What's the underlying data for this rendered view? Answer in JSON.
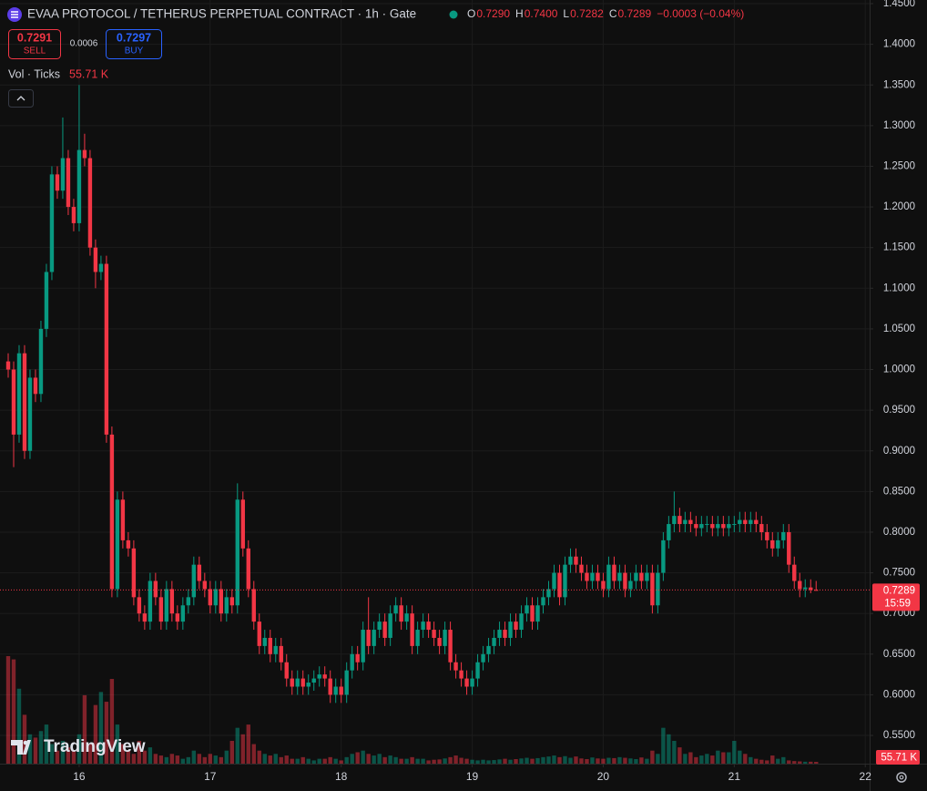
{
  "chart_data": {
    "type": "candlestick",
    "title": "EVAA PROTOCOL / TETHERUS PERPETUAL CONTRACT · 1h · Gate",
    "ohlc_legend": [
      {
        "key": "O",
        "value": "0.7290"
      },
      {
        "key": "H",
        "value": "0.7400"
      },
      {
        "key": "L",
        "value": "0.7282"
      },
      {
        "key": "C",
        "value": "0.7289"
      }
    ],
    "change": "−0.0003 (−0.04%)",
    "sell": {
      "price": "0.7291",
      "label": "SELL"
    },
    "spread": "0.0006",
    "buy": {
      "price": "0.7297",
      "label": "BUY"
    },
    "volume_legend": {
      "name": "Vol · Ticks",
      "value": "55.71 K"
    },
    "countdown": "15:59",
    "volume_tag": "55.71 K",
    "logo": "TradingView",
    "up_color": "#089981",
    "down_color": "#f23645",
    "grid": true,
    "open": [
      1.01,
      1.0,
      0.92,
      1.02,
      0.9,
      0.99,
      0.97,
      1.05,
      1.12,
      1.24,
      1.22,
      1.26,
      1.2,
      1.18,
      1.27,
      1.26,
      1.15,
      1.12,
      1.13,
      0.92,
      0.73,
      0.84,
      0.79,
      0.78,
      0.72,
      0.7,
      0.69,
      0.74,
      0.72,
      0.69,
      0.73,
      0.7,
      0.69,
      0.71,
      0.72,
      0.76,
      0.74,
      0.73,
      0.71,
      0.73,
      0.7,
      0.72,
      0.71,
      0.84,
      0.78,
      0.73,
      0.69,
      0.66,
      0.67,
      0.65,
      0.66,
      0.64,
      0.62,
      0.61,
      0.62,
      0.61,
      0.615,
      0.62,
      0.625,
      0.62,
      0.6,
      0.61,
      0.6,
      0.63,
      0.65,
      0.64,
      0.68,
      0.66,
      0.68,
      0.69,
      0.67,
      0.7,
      0.71,
      0.69,
      0.7,
      0.66,
      0.68,
      0.69,
      0.68,
      0.67,
      0.66,
      0.68,
      0.64,
      0.63,
      0.62,
      0.61,
      0.62,
      0.64,
      0.65,
      0.66,
      0.67,
      0.68,
      0.67,
      0.69,
      0.68,
      0.7,
      0.71,
      0.69,
      0.71,
      0.72,
      0.73,
      0.75,
      0.72,
      0.76,
      0.77,
      0.76,
      0.75,
      0.74,
      0.75,
      0.74,
      0.73,
      0.76,
      0.74,
      0.75,
      0.73,
      0.74,
      0.75,
      0.74,
      0.75,
      0.71,
      0.75,
      0.79,
      0.81,
      0.82,
      0.81,
      0.815,
      0.81,
      0.805,
      0.81,
      0.81,
      0.805,
      0.81,
      0.805,
      0.81,
      0.81,
      0.815,
      0.81,
      0.815,
      0.81,
      0.8,
      0.79,
      0.78,
      0.79,
      0.8,
      0.76,
      0.74,
      0.73,
      0.732,
      0.729
    ],
    "high": [
      1.02,
      1.01,
      1.03,
      1.03,
      1.0,
      1.0,
      1.06,
      1.13,
      1.25,
      1.25,
      1.31,
      1.27,
      1.21,
      1.35,
      1.29,
      1.27,
      1.16,
      1.14,
      1.14,
      0.93,
      0.85,
      0.85,
      0.8,
      0.79,
      0.73,
      0.71,
      0.75,
      0.75,
      0.73,
      0.74,
      0.74,
      0.71,
      0.72,
      0.73,
      0.77,
      0.77,
      0.75,
      0.74,
      0.74,
      0.74,
      0.73,
      0.73,
      0.86,
      0.85,
      0.79,
      0.74,
      0.7,
      0.68,
      0.68,
      0.67,
      0.67,
      0.65,
      0.63,
      0.63,
      0.63,
      0.625,
      0.63,
      0.635,
      0.635,
      0.63,
      0.62,
      0.62,
      0.64,
      0.66,
      0.66,
      0.69,
      0.72,
      0.69,
      0.7,
      0.7,
      0.71,
      0.72,
      0.72,
      0.71,
      0.71,
      0.69,
      0.7,
      0.7,
      0.69,
      0.68,
      0.69,
      0.69,
      0.65,
      0.64,
      0.63,
      0.63,
      0.65,
      0.66,
      0.67,
      0.68,
      0.69,
      0.69,
      0.7,
      0.7,
      0.71,
      0.72,
      0.72,
      0.72,
      0.73,
      0.74,
      0.76,
      0.76,
      0.77,
      0.78,
      0.78,
      0.77,
      0.76,
      0.76,
      0.76,
      0.75,
      0.77,
      0.77,
      0.76,
      0.76,
      0.75,
      0.76,
      0.76,
      0.76,
      0.76,
      0.76,
      0.8,
      0.82,
      0.85,
      0.83,
      0.825,
      0.825,
      0.82,
      0.82,
      0.82,
      0.82,
      0.82,
      0.82,
      0.82,
      0.82,
      0.825,
      0.825,
      0.825,
      0.825,
      0.82,
      0.81,
      0.8,
      0.8,
      0.81,
      0.81,
      0.77,
      0.75,
      0.742,
      0.742,
      0.74
    ],
    "low": [
      0.99,
      0.88,
      0.91,
      0.89,
      0.89,
      0.96,
      0.96,
      1.04,
      1.11,
      1.21,
      1.21,
      1.19,
      1.17,
      1.17,
      1.25,
      1.14,
      1.1,
      1.11,
      0.91,
      0.72,
      0.72,
      0.78,
      0.77,
      0.71,
      0.69,
      0.68,
      0.68,
      0.71,
      0.68,
      0.68,
      0.69,
      0.68,
      0.68,
      0.7,
      0.71,
      0.73,
      0.72,
      0.7,
      0.7,
      0.69,
      0.69,
      0.7,
      0.7,
      0.77,
      0.72,
      0.68,
      0.65,
      0.65,
      0.64,
      0.64,
      0.63,
      0.61,
      0.6,
      0.6,
      0.6,
      0.6,
      0.605,
      0.61,
      0.61,
      0.59,
      0.59,
      0.59,
      0.59,
      0.62,
      0.63,
      0.63,
      0.65,
      0.65,
      0.67,
      0.66,
      0.66,
      0.69,
      0.68,
      0.68,
      0.65,
      0.65,
      0.67,
      0.67,
      0.66,
      0.65,
      0.65,
      0.63,
      0.62,
      0.61,
      0.6,
      0.6,
      0.61,
      0.63,
      0.64,
      0.65,
      0.66,
      0.66,
      0.66,
      0.67,
      0.67,
      0.69,
      0.68,
      0.68,
      0.7,
      0.71,
      0.72,
      0.71,
      0.71,
      0.75,
      0.75,
      0.74,
      0.73,
      0.73,
      0.73,
      0.72,
      0.72,
      0.73,
      0.73,
      0.72,
      0.72,
      0.73,
      0.73,
      0.73,
      0.7,
      0.7,
      0.74,
      0.78,
      0.8,
      0.8,
      0.8,
      0.8,
      0.795,
      0.795,
      0.8,
      0.795,
      0.795,
      0.795,
      0.795,
      0.8,
      0.8,
      0.8,
      0.8,
      0.8,
      0.79,
      0.78,
      0.77,
      0.77,
      0.78,
      0.75,
      0.73,
      0.72,
      0.72,
      0.725,
      0.7282
    ],
    "close": [
      1.0,
      0.92,
      1.02,
      0.9,
      0.99,
      0.97,
      1.05,
      1.12,
      1.24,
      1.22,
      1.26,
      1.2,
      1.18,
      1.27,
      1.26,
      1.15,
      1.12,
      1.13,
      0.92,
      0.73,
      0.84,
      0.79,
      0.78,
      0.72,
      0.7,
      0.69,
      0.74,
      0.72,
      0.69,
      0.73,
      0.7,
      0.69,
      0.71,
      0.72,
      0.76,
      0.74,
      0.73,
      0.71,
      0.73,
      0.7,
      0.72,
      0.71,
      0.84,
      0.78,
      0.73,
      0.69,
      0.66,
      0.67,
      0.65,
      0.66,
      0.64,
      0.62,
      0.61,
      0.62,
      0.61,
      0.615,
      0.62,
      0.625,
      0.62,
      0.6,
      0.61,
      0.6,
      0.63,
      0.65,
      0.64,
      0.68,
      0.66,
      0.68,
      0.69,
      0.67,
      0.7,
      0.71,
      0.69,
      0.7,
      0.66,
      0.68,
      0.69,
      0.68,
      0.67,
      0.66,
      0.68,
      0.64,
      0.63,
      0.62,
      0.61,
      0.62,
      0.64,
      0.65,
      0.66,
      0.67,
      0.68,
      0.67,
      0.69,
      0.68,
      0.7,
      0.71,
      0.69,
      0.71,
      0.72,
      0.73,
      0.75,
      0.72,
      0.76,
      0.77,
      0.76,
      0.75,
      0.74,
      0.75,
      0.74,
      0.73,
      0.76,
      0.74,
      0.75,
      0.73,
      0.74,
      0.75,
      0.74,
      0.75,
      0.71,
      0.75,
      0.79,
      0.81,
      0.82,
      0.81,
      0.815,
      0.81,
      0.805,
      0.81,
      0.81,
      0.805,
      0.81,
      0.805,
      0.81,
      0.81,
      0.815,
      0.81,
      0.815,
      0.81,
      0.8,
      0.79,
      0.78,
      0.79,
      0.8,
      0.76,
      0.74,
      0.73,
      0.732,
      0.729,
      0.7289
    ],
    "volume": [
      3300,
      3200,
      2300,
      1500,
      900,
      800,
      1000,
      1200,
      600,
      400,
      700,
      500,
      400,
      900,
      2100,
      600,
      1800,
      2200,
      1900,
      2600,
      1200,
      600,
      400,
      300,
      700,
      400,
      500,
      300,
      250,
      200,
      300,
      250,
      150,
      200,
      400,
      300,
      200,
      300,
      250,
      200,
      400,
      700,
      1100,
      900,
      1200,
      600,
      400,
      300,
      250,
      300,
      200,
      250,
      150,
      150,
      200,
      150,
      100,
      150,
      150,
      200,
      150,
      100,
      200,
      300,
      350,
      400,
      300,
      250,
      300,
      200,
      250,
      200,
      150,
      150,
      200,
      150,
      150,
      100,
      120,
      130,
      160,
      200,
      250,
      180,
      150,
      120,
      100,
      120,
      100,
      110,
      130,
      150,
      120,
      140,
      160,
      180,
      150,
      170,
      200,
      220,
      250,
      200,
      230,
      180,
      220,
      160,
      140,
      190,
      160,
      150,
      180,
      170,
      200,
      180,
      160,
      140,
      190,
      150,
      400,
      300,
      1100,
      900,
      700,
      500,
      300,
      350,
      200,
      250,
      300,
      250,
      400,
      350,
      350,
      700,
      400,
      300,
      200,
      150,
      120,
      100,
      250,
      150,
      200,
      100,
      80,
      70,
      60,
      60,
      55.71
    ],
    "xlim": [
      -1.5,
      157.8
    ],
    "xticks": [
      {
        "value": 13,
        "label": "16"
      },
      {
        "value": 37,
        "label": "17"
      },
      {
        "value": 61,
        "label": "18"
      },
      {
        "value": 85,
        "label": "19"
      },
      {
        "value": 109,
        "label": "20"
      },
      {
        "value": 133,
        "label": "21"
      },
      {
        "value": 157,
        "label": "22"
      }
    ],
    "ylim": [
      0.5153,
      1.45
    ],
    "yticks": [
      {
        "value": 0.55,
        "label": "0.5500"
      },
      {
        "value": 0.6,
        "label": "0.6000"
      },
      {
        "value": 0.65,
        "label": "0.6500"
      },
      {
        "value": 0.7,
        "label": "0.7000"
      },
      {
        "value": 0.75,
        "label": "0.7500"
      },
      {
        "value": 0.8,
        "label": "0.8000"
      },
      {
        "value": 0.85,
        "label": "0.8500"
      },
      {
        "value": 0.9,
        "label": "0.9000"
      },
      {
        "value": 0.95,
        "label": "0.9500"
      },
      {
        "value": 1.0,
        "label": "1.0000"
      },
      {
        "value": 1.05,
        "label": "1.0500"
      },
      {
        "value": 1.1,
        "label": "1.1000"
      },
      {
        "value": 1.15,
        "label": "1.1500"
      },
      {
        "value": 1.2,
        "label": "1.2000"
      },
      {
        "value": 1.25,
        "label": "1.2500"
      },
      {
        "value": 1.3,
        "label": "1.3000"
      },
      {
        "value": 1.35,
        "label": "1.3500"
      },
      {
        "value": 1.4,
        "label": "1.4000"
      },
      {
        "value": 1.45,
        "label": "1.4500"
      }
    ]
  }
}
